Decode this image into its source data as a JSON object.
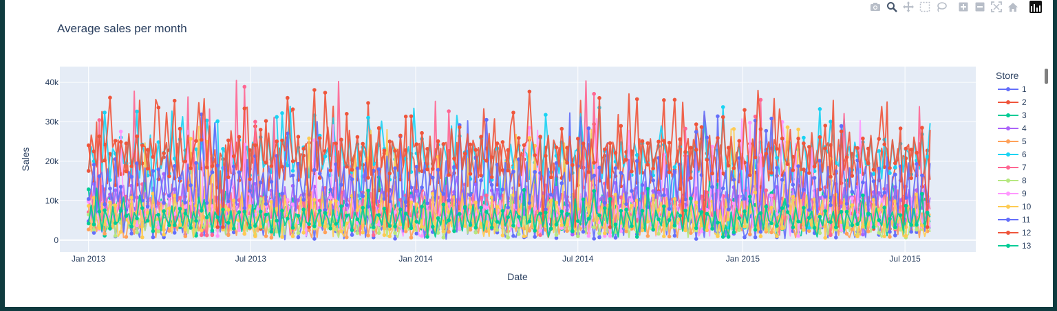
{
  "modebar": {
    "buttons": [
      {
        "name": "camera-icon"
      },
      {
        "name": "zoom-icon"
      },
      {
        "name": "pan-icon"
      },
      {
        "name": "box-select-icon"
      },
      {
        "name": "lasso-select-icon"
      },
      {
        "name": "zoom-in-icon"
      },
      {
        "name": "zoom-out-icon"
      },
      {
        "name": "autoscale-icon"
      },
      {
        "name": "reset-axes-icon"
      }
    ],
    "logo": "plotly-logo"
  },
  "chart_data": {
    "type": "line",
    "title": "Average sales per month",
    "xlabel": "Date",
    "ylabel": "Sales",
    "x_range": [
      "2012-11-30",
      "2015-09-18"
    ],
    "x_data_range": [
      "2013-01-01",
      "2015-07-31"
    ],
    "x_ticks": [
      {
        "date": "2013-01-01",
        "label": "Jan 2013"
      },
      {
        "date": "2013-07-01",
        "label": "Jul 2013"
      },
      {
        "date": "2014-01-01",
        "label": "Jan 2014"
      },
      {
        "date": "2014-07-01",
        "label": "Jul 2014"
      },
      {
        "date": "2015-01-01",
        "label": "Jan 2015"
      },
      {
        "date": "2015-07-01",
        "label": "Jul 2015"
      }
    ],
    "ylim": [
      -3000,
      44000
    ],
    "y_ticks": [
      {
        "value": 0,
        "label": "0"
      },
      {
        "value": 10000,
        "label": "10k"
      },
      {
        "value": 20000,
        "label": "20k"
      },
      {
        "value": 30000,
        "label": "30k"
      },
      {
        "value": 40000,
        "label": "40k"
      }
    ],
    "grid": true,
    "legend": {
      "title": "Store",
      "placement": "right"
    },
    "series": [
      {
        "name": "1",
        "color": "#636efa",
        "base": 4800,
        "amp": 4200,
        "peak": 13000
      },
      {
        "name": "2",
        "color": "#EF553B",
        "base": 19000,
        "amp": 6000,
        "peak": 36000
      },
      {
        "name": "3",
        "color": "#00cc96",
        "base": 7500,
        "amp": 4000,
        "peak": 16000
      },
      {
        "name": "4",
        "color": "#ab63fa",
        "base": 9500,
        "amp": 4500,
        "peak": 19000
      },
      {
        "name": "5",
        "color": "#FFA15A",
        "base": 4200,
        "amp": 3000,
        "peak": 13000
      },
      {
        "name": "6",
        "color": "#19d3f3",
        "base": 21000,
        "amp": 5000,
        "peak": 34000
      },
      {
        "name": "7",
        "color": "#FF6692",
        "base": 8500,
        "amp": 5000,
        "peak": 41500
      },
      {
        "name": "8",
        "color": "#B6E880",
        "base": 4500,
        "amp": 3000,
        "peak": 12000
      },
      {
        "name": "9",
        "color": "#FF97FF",
        "base": 7000,
        "amp": 4000,
        "peak": 31000
      },
      {
        "name": "10",
        "color": "#FECB52",
        "base": 6500,
        "amp": 5000,
        "peak": 29000
      },
      {
        "name": "11",
        "color": "#636efa",
        "base": 14000,
        "amp": 6500,
        "peak": 33000
      },
      {
        "name": "12",
        "color": "#EF553B",
        "base": 22000,
        "amp": 6000,
        "peak": 38500
      },
      {
        "name": "13",
        "color": "#00cc96",
        "base": 5500,
        "amp": 3000,
        "peak": 14000
      }
    ]
  }
}
